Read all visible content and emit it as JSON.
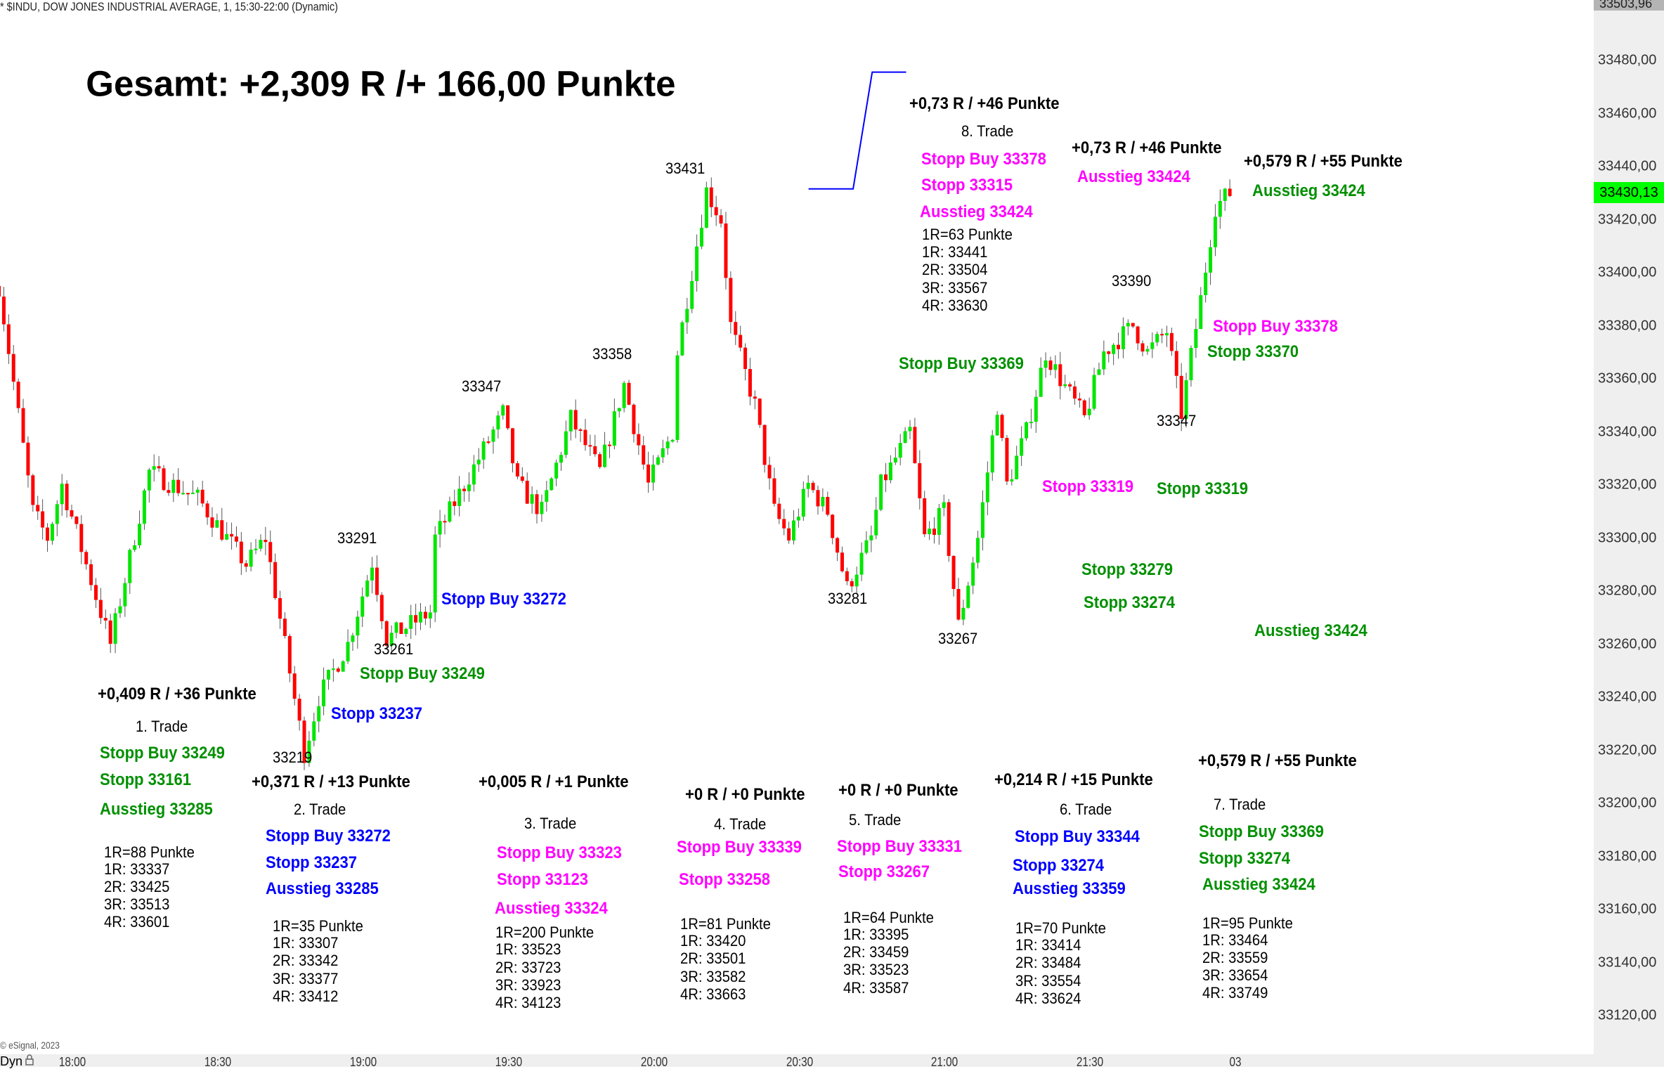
{
  "header": {
    "title": "* $INDU, DOW JONES INDUSTRIAL AVERAGE, 1, 15:30-22:00 (Dynamic)"
  },
  "summary": {
    "title": "Gesamt: +2,309 R /+ 166,00 Punkte"
  },
  "colors": {
    "green": "#009000",
    "blue": "#0000ff",
    "magenta": "#ff00ff",
    "black": "#000000",
    "up": "#00e600",
    "down": "#ff0000",
    "last_price_bg": "#00ff00"
  },
  "trades": [
    {
      "result": "+0,409 R / +36 Punkte",
      "name": "1. Trade",
      "color": "green",
      "orders": [
        "Stopp Buy 33249",
        "Stopp 33161",
        "Ausstieg 33285"
      ],
      "risk": "1R=88 Punkte",
      "targets": [
        "1R: 33337",
        "2R: 33425",
        "3R: 33513",
        "4R: 33601"
      ]
    },
    {
      "result": "+0,371 R / +13 Punkte",
      "name": "2. Trade",
      "color": "blue",
      "orders": [
        "Stopp Buy 33272",
        "Stopp 33237",
        "Ausstieg 33285"
      ],
      "risk": "1R=35 Punkte",
      "targets": [
        "1R: 33307",
        "2R: 33342",
        "3R: 33377",
        "4R: 33412"
      ]
    },
    {
      "result": "+0,005 R / +1 Punkte",
      "name": "3. Trade",
      "color": "magenta",
      "orders": [
        "Stopp Buy 33323",
        "Stopp 33123",
        "Ausstieg 33324"
      ],
      "risk": "1R=200 Punkte",
      "targets": [
        "1R: 33523",
        "2R: 33723",
        "3R: 33923",
        "4R: 34123"
      ]
    },
    {
      "result": "+0 R / +0 Punkte",
      "name": "4. Trade",
      "color": "magenta",
      "orders": [
        "Stopp Buy 33339",
        "Stopp 33258"
      ],
      "risk": "1R=81 Punkte",
      "targets": [
        "1R: 33420",
        "2R: 33501",
        "3R: 33582",
        "4R: 33663"
      ]
    },
    {
      "result": "+0 R / +0 Punkte",
      "name": "5. Trade",
      "color": "magenta",
      "orders": [
        "Stopp Buy 33331",
        "Stopp 33267"
      ],
      "risk": "1R=64 Punkte",
      "targets": [
        "1R: 33395",
        "2R: 33459",
        "3R: 33523",
        "4R: 33587"
      ]
    },
    {
      "result": "+0,214 R / +15 Punkte",
      "name": "6. Trade",
      "color": "blue",
      "orders": [
        "Stopp Buy 33344",
        "Stopp 33274",
        "Ausstieg 33359"
      ],
      "risk": "1R=70 Punkte",
      "targets": [
        "1R: 33414",
        "2R: 33484",
        "3R: 33554",
        "4R: 33624"
      ]
    },
    {
      "result": "+0,579 R / +55 Punkte",
      "name": "7. Trade",
      "color": "green",
      "orders": [
        "Stopp Buy 33369",
        "Stopp 33274",
        "Ausstieg 33424"
      ],
      "risk": "1R=95 Punkte",
      "targets": [
        "1R: 33464",
        "2R: 33559",
        "3R: 33654",
        "4R: 33749"
      ]
    },
    {
      "result": "+0,73 R / +46 Punkte",
      "name": "8. Trade",
      "color": "magenta",
      "orders": [
        "Stopp Buy 33378",
        "Stopp 33315",
        "Ausstieg 33424"
      ],
      "risk": "1R=63 Punkte",
      "targets": [
        "1R: 33441",
        "2R: 33504",
        "3R: 33567",
        "4R: 33630"
      ]
    }
  ],
  "chart_labels": [
    {
      "text": "+0,73 R / +46 Punkte",
      "color": "black",
      "bold": true
    },
    {
      "text": "Ausstieg 33424",
      "color": "magenta",
      "bold": true
    },
    {
      "text": "+0,579 R / +55 Punkte",
      "color": "black",
      "bold": true
    },
    {
      "text": "Ausstieg 33424",
      "color": "green",
      "bold": true
    },
    {
      "text": "Stopp Buy 33378",
      "color": "magenta",
      "bold": true
    },
    {
      "text": "Stopp 33370",
      "color": "green",
      "bold": true
    },
    {
      "text": "Stopp Buy 33369",
      "color": "green",
      "bold": true
    },
    {
      "text": "Stopp 33319",
      "color": "magenta",
      "bold": true
    },
    {
      "text": "Stopp 33319",
      "color": "green",
      "bold": true
    },
    {
      "text": "Stopp 33279",
      "color": "green",
      "bold": true
    },
    {
      "text": "Stopp 33274",
      "color": "green",
      "bold": true
    },
    {
      "text": "Ausstieg 33424",
      "color": "green",
      "bold": true
    },
    {
      "text": "Stopp Buy 33272",
      "color": "blue",
      "bold": true
    },
    {
      "text": "Stopp Buy 33249",
      "color": "green",
      "bold": true
    },
    {
      "text": "Stopp 33237",
      "color": "blue",
      "bold": true
    }
  ],
  "swing_labels": [
    "33431",
    "33358",
    "33347",
    "33291",
    "33261",
    "33219",
    "33281",
    "33267",
    "33390",
    "33347"
  ],
  "chart_data": {
    "type": "candlestick",
    "title": "$INDU, DOW JONES INDUSTRIAL AVERAGE, 1",
    "x_unit": "minutes since 18:00 (1-minute bars)",
    "x_ticks": [
      "18:00",
      "18:30",
      "19:00",
      "19:30",
      "20:00",
      "20:30",
      "21:00",
      "21:30",
      "03"
    ],
    "y_ticks": [
      "33480,00",
      "33460,00",
      "33440,00",
      "33420,00",
      "33400,00",
      "33380,00",
      "33360,00",
      "33340,00",
      "33320,00",
      "33300,00",
      "33280,00",
      "33260,00",
      "33240,00",
      "33220,00",
      "33200,00",
      "33180,00",
      "33160,00",
      "33140,00",
      "33120,00"
    ],
    "ylim": [
      33115,
      33505
    ],
    "session_high": "33503,96",
    "last_price": "33430,13",
    "price_path_approx": [
      [
        -14,
        33395
      ],
      [
        -7,
        33310
      ],
      [
        -4,
        33300
      ],
      [
        -1,
        33320
      ],
      [
        9,
        33260
      ],
      [
        17,
        33325
      ],
      [
        27,
        33315
      ],
      [
        37,
        33290
      ],
      [
        41,
        33300
      ],
      [
        49,
        33219
      ],
      [
        52,
        33240
      ],
      [
        58,
        33260
      ],
      [
        63,
        33291
      ],
      [
        66,
        33262
      ],
      [
        75,
        33272
      ],
      [
        76,
        33300
      ],
      [
        85,
        33330
      ],
      [
        90,
        33347
      ],
      [
        93,
        33320
      ],
      [
        98,
        33310
      ],
      [
        104,
        33345
      ],
      [
        110,
        33325
      ],
      [
        115,
        33358
      ],
      [
        120,
        33320
      ],
      [
        125,
        33340
      ],
      [
        126,
        33370
      ],
      [
        132,
        33431
      ],
      [
        135,
        33420
      ],
      [
        137,
        33380
      ],
      [
        142,
        33350
      ],
      [
        146,
        33310
      ],
      [
        149,
        33300
      ],
      [
        153,
        33320
      ],
      [
        157,
        33310
      ],
      [
        161,
        33281
      ],
      [
        166,
        33300
      ],
      [
        168,
        33320
      ],
      [
        174,
        33340
      ],
      [
        177,
        33300
      ],
      [
        181,
        33310
      ],
      [
        184,
        33267
      ],
      [
        188,
        33300
      ],
      [
        192,
        33350
      ],
      [
        194,
        33320
      ],
      [
        198,
        33340
      ],
      [
        202,
        33370
      ],
      [
        205,
        33360
      ],
      [
        210,
        33345
      ],
      [
        214,
        33370
      ],
      [
        220,
        33380
      ],
      [
        223,
        33370
      ],
      [
        227,
        33378
      ],
      [
        230,
        33347
      ],
      [
        234,
        33390
      ],
      [
        237,
        33425
      ],
      [
        240,
        33430
      ]
    ]
  },
  "footer": {
    "copyright": "© eSignal, 2023",
    "mode": "Dyn"
  }
}
